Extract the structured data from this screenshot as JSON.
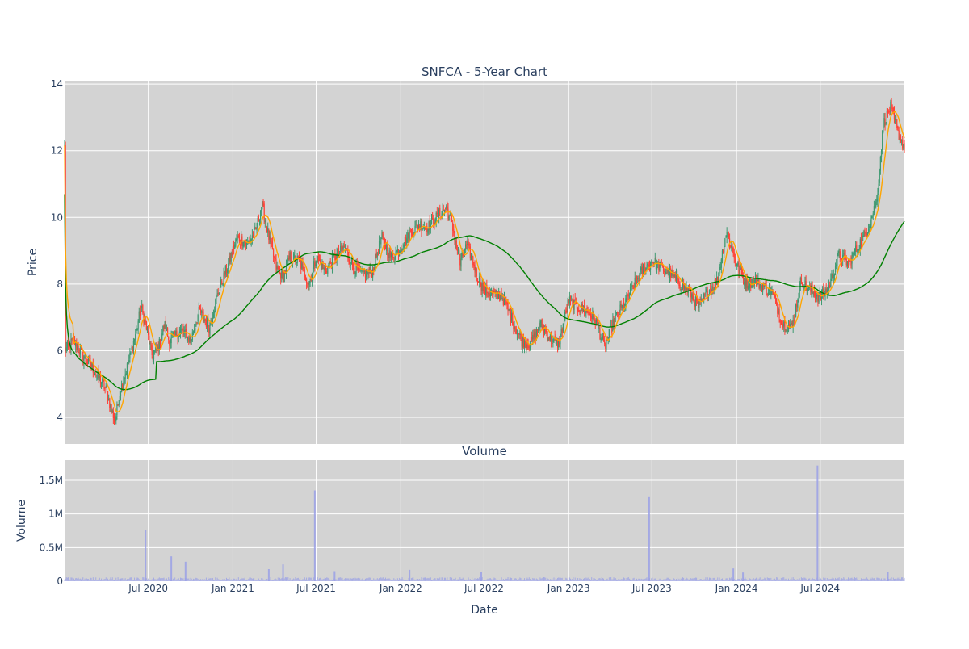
{
  "chart_data": [
    {
      "type": "candlestick",
      "title": "SNFCA - 5-Year Chart",
      "xlabel": "",
      "ylabel": "Price",
      "x_range": [
        "2020-01-01",
        "2024-12-31"
      ],
      "ylim": [
        3.2,
        14.1
      ],
      "y_ticks": [
        4,
        6,
        8,
        10,
        12,
        14
      ],
      "x_ticks": [
        "Jul 2020",
        "Jan 2021",
        "Jul 2021",
        "Jan 2022",
        "Jul 2022",
        "Jan 2023",
        "Jul 2023",
        "Jan 2024",
        "Jul 2024"
      ],
      "grid": true,
      "colors": {
        "increasing": "#3d9970",
        "decreasing": "#ff4136",
        "ma_short": "#ffa500",
        "ma_long": "#008000",
        "background": "#d3d3d3"
      },
      "close_series": [
        [
          "2020-01-02",
          6.0
        ],
        [
          "2020-01-20",
          6.3
        ],
        [
          "2020-02-10",
          5.8
        ],
        [
          "2020-03-01",
          5.5
        ],
        [
          "2020-03-15",
          5.2
        ],
        [
          "2020-04-01",
          4.8
        ],
        [
          "2020-04-10",
          4.3
        ],
        [
          "2020-04-20",
          3.9
        ],
        [
          "2020-05-01",
          4.8
        ],
        [
          "2020-05-20",
          5.7
        ],
        [
          "2020-06-05",
          6.6
        ],
        [
          "2020-06-15",
          7.3
        ],
        [
          "2020-06-25",
          6.8
        ],
        [
          "2020-07-10",
          5.8
        ],
        [
          "2020-07-25",
          6.2
        ],
        [
          "2020-08-05",
          6.8
        ],
        [
          "2020-08-15",
          6.3
        ],
        [
          "2020-09-10",
          6.6
        ],
        [
          "2020-10-01",
          6.3
        ],
        [
          "2020-10-20",
          7.2
        ],
        [
          "2020-11-10",
          6.7
        ],
        [
          "2020-12-01",
          7.8
        ],
        [
          "2020-12-20",
          8.5
        ],
        [
          "2021-01-10",
          9.4
        ],
        [
          "2021-02-01",
          9.2
        ],
        [
          "2021-02-20",
          9.6
        ],
        [
          "2021-03-05",
          10.4
        ],
        [
          "2021-03-20",
          9.4
        ],
        [
          "2021-04-05",
          8.5
        ],
        [
          "2021-04-20",
          8.2
        ],
        [
          "2021-05-05",
          8.8
        ],
        [
          "2021-05-25",
          8.7
        ],
        [
          "2021-06-15",
          8.0
        ],
        [
          "2021-07-01",
          8.8
        ],
        [
          "2021-07-20",
          8.4
        ],
        [
          "2021-08-10",
          8.8
        ],
        [
          "2021-09-01",
          9.1
        ],
        [
          "2021-09-20",
          8.5
        ],
        [
          "2021-10-10",
          8.3
        ],
        [
          "2021-11-01",
          8.4
        ],
        [
          "2021-11-20",
          9.4
        ],
        [
          "2021-12-10",
          8.8
        ],
        [
          "2022-01-01",
          9.1
        ],
        [
          "2022-01-20",
          9.5
        ],
        [
          "2022-02-10",
          9.8
        ],
        [
          "2022-03-01",
          9.7
        ],
        [
          "2022-03-20",
          10.0
        ],
        [
          "2022-04-10",
          10.3
        ],
        [
          "2022-04-25",
          9.6
        ],
        [
          "2022-05-10",
          8.6
        ],
        [
          "2022-05-25",
          9.2
        ],
        [
          "2022-06-15",
          8.3
        ],
        [
          "2022-07-01",
          7.8
        ],
        [
          "2022-07-20",
          7.7
        ],
        [
          "2022-08-10",
          7.6
        ],
        [
          "2022-09-01",
          6.9
        ],
        [
          "2022-09-20",
          6.3
        ],
        [
          "2022-10-10",
          6.2
        ],
        [
          "2022-11-01",
          6.8
        ],
        [
          "2022-11-20",
          6.4
        ],
        [
          "2022-12-10",
          6.2
        ],
        [
          "2023-01-01",
          7.5
        ],
        [
          "2023-01-20",
          7.3
        ],
        [
          "2023-02-10",
          7.2
        ],
        [
          "2023-03-01",
          6.9
        ],
        [
          "2023-03-20",
          6.1
        ],
        [
          "2023-04-10",
          6.9
        ],
        [
          "2023-05-01",
          7.4
        ],
        [
          "2023-05-20",
          7.9
        ],
        [
          "2023-06-10",
          8.4
        ],
        [
          "2023-07-01",
          8.7
        ],
        [
          "2023-07-20",
          8.5
        ],
        [
          "2023-08-10",
          8.3
        ],
        [
          "2023-09-01",
          8.0
        ],
        [
          "2023-09-20",
          7.8
        ],
        [
          "2023-10-10",
          7.3
        ],
        [
          "2023-11-01",
          7.8
        ],
        [
          "2023-11-20",
          8.1
        ],
        [
          "2023-12-10",
          9.6
        ],
        [
          "2024-01-01",
          8.6
        ],
        [
          "2024-01-20",
          8.0
        ],
        [
          "2024-02-10",
          8.1
        ],
        [
          "2024-03-01",
          7.9
        ],
        [
          "2024-03-20",
          7.7
        ],
        [
          "2024-04-10",
          6.8
        ],
        [
          "2024-05-01",
          6.7
        ],
        [
          "2024-05-20",
          8.1
        ],
        [
          "2024-06-10",
          7.8
        ],
        [
          "2024-07-01",
          7.6
        ],
        [
          "2024-07-20",
          7.9
        ],
        [
          "2024-08-10",
          8.9
        ],
        [
          "2024-09-01",
          8.6
        ],
        [
          "2024-09-20",
          9.1
        ],
        [
          "2024-10-10",
          9.6
        ],
        [
          "2024-11-01",
          10.5
        ],
        [
          "2024-11-15",
          12.8
        ],
        [
          "2024-12-01",
          13.3
        ],
        [
          "2024-12-15",
          12.6
        ],
        [
          "2024-12-31",
          12.1
        ]
      ]
    },
    {
      "type": "bar",
      "title": "Volume",
      "xlabel": "Date",
      "ylabel": "Volume",
      "x_range": [
        "2020-01-01",
        "2024-12-31"
      ],
      "ylim": [
        0,
        1800000
      ],
      "y_ticks": [
        {
          "value": 0,
          "label": "0"
        },
        {
          "value": 500000,
          "label": "0.5M"
        },
        {
          "value": 1000000,
          "label": "1M"
        },
        {
          "value": 1500000,
          "label": "1.5M"
        }
      ],
      "x_ticks": [
        "Jul 2020",
        "Jan 2021",
        "Jul 2021",
        "Jan 2022",
        "Jul 2022",
        "Jan 2023",
        "Jul 2023",
        "Jan 2024",
        "Jul 2024"
      ],
      "grid": true,
      "colors": {
        "bar": "#9aa0e6",
        "background": "#d3d3d3"
      },
      "spikes": [
        [
          "2020-06-25",
          760000
        ],
        [
          "2020-08-20",
          370000
        ],
        [
          "2020-09-20",
          290000
        ],
        [
          "2021-03-20",
          180000
        ],
        [
          "2021-04-20",
          250000
        ],
        [
          "2021-06-28",
          1350000
        ],
        [
          "2021-08-10",
          150000
        ],
        [
          "2022-01-20",
          170000
        ],
        [
          "2022-06-25",
          140000
        ],
        [
          "2023-06-25",
          1250000
        ],
        [
          "2023-12-25",
          190000
        ],
        [
          "2024-01-15",
          130000
        ],
        [
          "2024-06-25",
          1720000
        ],
        [
          "2024-11-25",
          140000
        ]
      ]
    }
  ]
}
